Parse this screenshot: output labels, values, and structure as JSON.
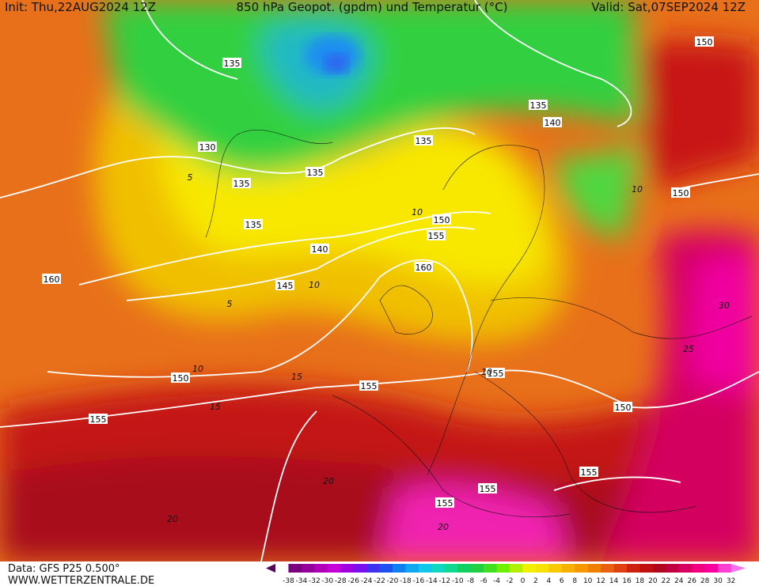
{
  "header": {
    "init": "Init: Thu,22AUG2024 12Z",
    "title": "850 hPa Geopot. (gpdm) und Temperatur (°C)",
    "valid": "Valid: Sat,07SEP2024 12Z"
  },
  "footer": {
    "data": "Data: GFS P25 0.500°",
    "site": "WWW.WETTERZENTRALE.DE"
  },
  "colorbar": {
    "labels": [
      -38,
      -34,
      -32,
      -30,
      -28,
      -26,
      -24,
      -22,
      -20,
      -18,
      -16,
      -14,
      -12,
      -10,
      -8,
      -6,
      -4,
      -2,
      0,
      2,
      4,
      6,
      8,
      10,
      12,
      14,
      16,
      18,
      20,
      22,
      24,
      26,
      28,
      30,
      32
    ],
    "colors": [
      "#5a0060",
      "#7a007f",
      "#96009a",
      "#b000b8",
      "#c800d8",
      "#a000e0",
      "#7a10f0",
      "#4030f0",
      "#2050f0",
      "#1080f0",
      "#10a8f0",
      "#10c8e8",
      "#10d8c0",
      "#10d890",
      "#10d060",
      "#20d040",
      "#40e020",
      "#70f000",
      "#b0f000",
      "#f0f000",
      "#f8e000",
      "#f8c800",
      "#f8b000",
      "#f89800",
      "#f08000",
      "#e86010",
      "#e04010",
      "#d02010",
      "#c01010",
      "#b00820",
      "#c00040",
      "#d80060",
      "#f00080",
      "#f800a0",
      "#ff40d0",
      "#ff70f0"
    ]
  },
  "contour_labels": [
    "135",
    "135",
    "140",
    "130",
    "135",
    "135",
    "135",
    "150",
    "135",
    "150",
    "155",
    "140",
    "160",
    "160",
    "145",
    "150",
    "155",
    "155",
    "155",
    "150",
    "155",
    "155",
    "155",
    "150"
  ],
  "isotherm_labels": [
    "10",
    "10",
    "5",
    "10",
    "15",
    "15",
    "20",
    "20",
    "20",
    "25",
    "30",
    "10",
    "5",
    "10"
  ]
}
